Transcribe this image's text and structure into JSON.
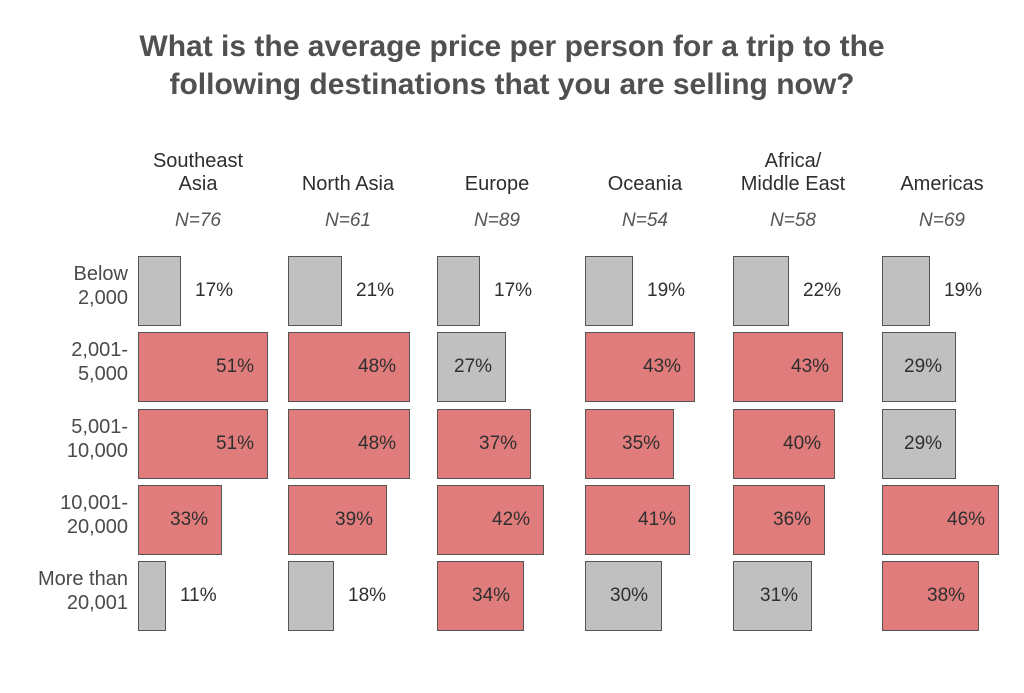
{
  "chart_data": {
    "type": "table",
    "title": "What is the average price per person for a trip to the following destinations that you are selling now?",
    "title_lines": [
      "What is the average price per person for a trip to the",
      "following destinations that you are selling now?"
    ],
    "rows": [
      {
        "line1": "Below",
        "line2": "2,000"
      },
      {
        "line1": "2,001-",
        "line2": "5,000"
      },
      {
        "line1": "5,001-",
        "line2": "10,000"
      },
      {
        "line1": "10,001-",
        "line2": "20,000"
      },
      {
        "line1": "More than",
        "line2": "20,001"
      }
    ],
    "columns": [
      {
        "line1": "Southeast",
        "line2": "Asia",
        "n": "N=76",
        "values": [
          17,
          51,
          51,
          33,
          11
        ],
        "labels": [
          "17%",
          "51%",
          "51%",
          "33%",
          "11%"
        ],
        "highlight": [
          false,
          true,
          true,
          true,
          false
        ]
      },
      {
        "line1": "",
        "line2": "North Asia",
        "n": "N=61",
        "values": [
          21,
          48,
          48,
          39,
          18
        ],
        "labels": [
          "21%",
          "48%",
          "48%",
          "39%",
          "18%"
        ],
        "highlight": [
          false,
          true,
          true,
          true,
          false
        ]
      },
      {
        "line1": "",
        "line2": "Europe",
        "n": "N=89",
        "values": [
          17,
          27,
          37,
          42,
          34
        ],
        "labels": [
          "17%",
          "27%",
          "37%",
          "42%",
          "34%"
        ],
        "highlight": [
          false,
          false,
          true,
          true,
          true
        ]
      },
      {
        "line1": "",
        "line2": "Oceania",
        "n": "N=54",
        "values": [
          19,
          43,
          35,
          41,
          30
        ],
        "labels": [
          "19%",
          "43%",
          "35%",
          "41%",
          "30%"
        ],
        "highlight": [
          false,
          true,
          true,
          true,
          false
        ]
      },
      {
        "line1": "Africa/",
        "line2": "Middle East",
        "n": "N=58",
        "values": [
          22,
          43,
          40,
          36,
          31
        ],
        "labels": [
          "22%",
          "43%",
          "40%",
          "36%",
          "31%"
        ],
        "highlight": [
          false,
          true,
          true,
          true,
          false
        ]
      },
      {
        "line1": "",
        "line2": "Americas",
        "n": "N=69",
        "values": [
          19,
          29,
          29,
          46,
          38
        ],
        "labels": [
          "19%",
          "29%",
          "29%",
          "46%",
          "38%"
        ],
        "highlight": [
          false,
          false,
          false,
          true,
          true
        ]
      }
    ],
    "colors": {
      "highlight": "#e17c7c",
      "other": "#c0c0c0"
    }
  }
}
